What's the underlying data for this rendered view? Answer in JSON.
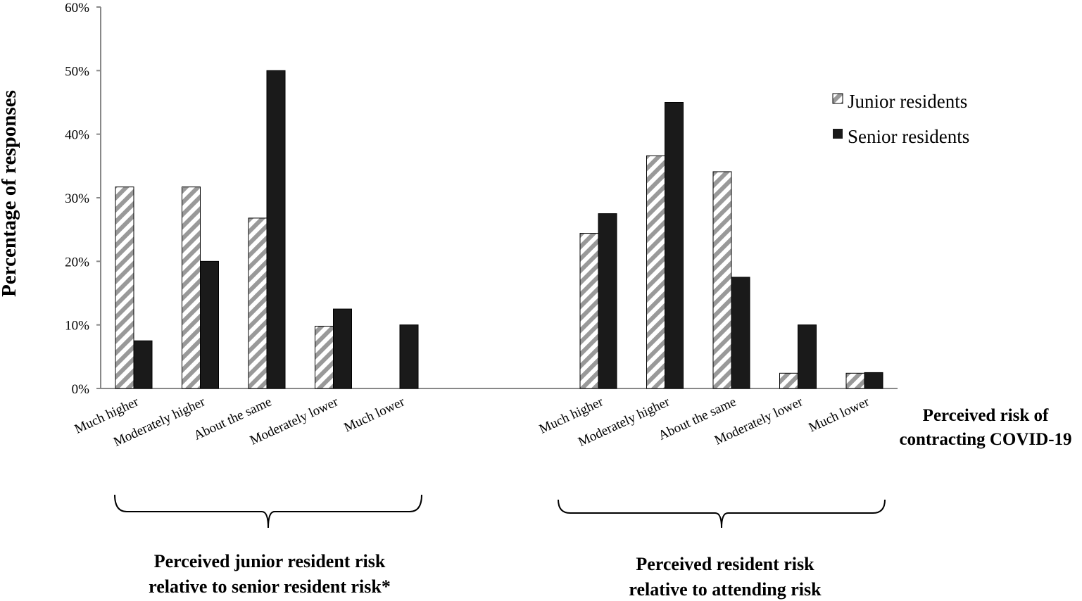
{
  "chart_data": {
    "type": "bar",
    "ylabel": "Percentage of responses",
    "xlabel_lines": [
      "Perceived risk of",
      "contracting COVID-19"
    ],
    "ylim": [
      0,
      60
    ],
    "yticks": [
      0,
      10,
      20,
      30,
      40,
      50,
      60
    ],
    "ytick_labels": [
      "0%",
      "10%",
      "20%",
      "30%",
      "40%",
      "50%",
      "60%"
    ],
    "grid": false,
    "legend_position": "top-right",
    "series": [
      {
        "name": "Junior residents",
        "fill": "hatched gray",
        "color": "#999999"
      },
      {
        "name": "Senior residents",
        "fill": "solid",
        "color": "#1a1a1a"
      }
    ],
    "groups": [
      {
        "label_lines": [
          "Perceived junior resident risk",
          "relative to senior resident risk*"
        ],
        "categories": [
          "Much higher",
          "Moderately higher",
          "About the same",
          "Moderately lower",
          "Much lower"
        ],
        "junior": [
          31.7,
          31.7,
          26.8,
          9.8,
          0
        ],
        "senior": [
          7.5,
          20.0,
          50.0,
          12.5,
          10.0
        ]
      },
      {
        "label_lines": [
          "Perceived resident risk",
          "relative to attending risk"
        ],
        "categories": [
          "Much higher",
          "Moderately higher",
          "About the same",
          "Moderately lower",
          "Much lower"
        ],
        "junior": [
          24.4,
          36.6,
          34.1,
          2.4,
          2.4
        ],
        "senior": [
          27.5,
          45.0,
          17.5,
          10.0,
          2.5
        ]
      }
    ]
  }
}
